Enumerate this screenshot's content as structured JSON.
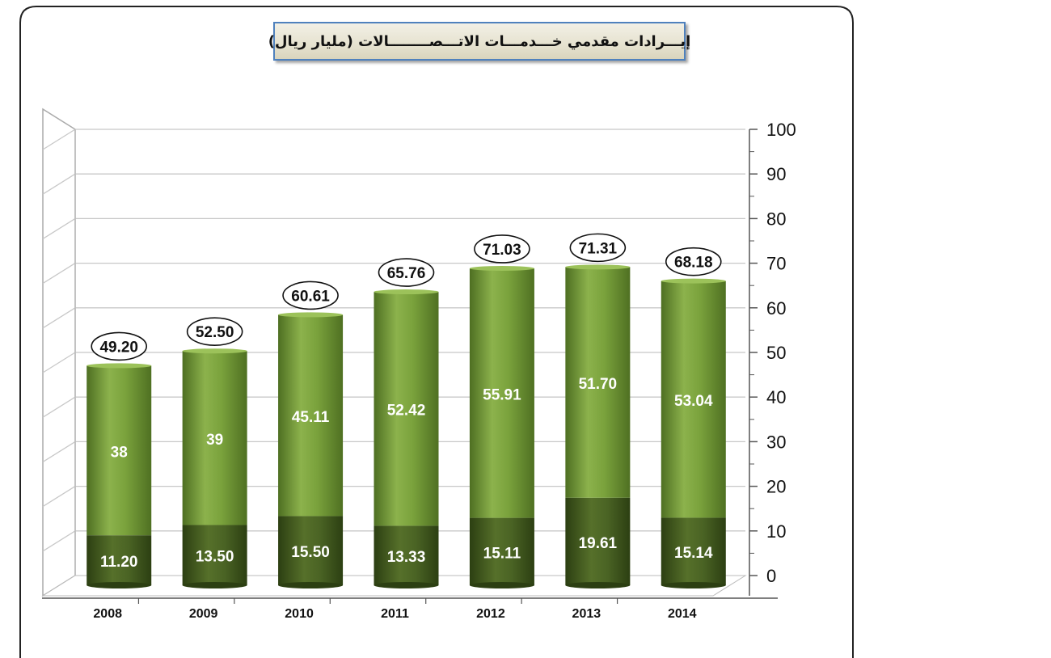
{
  "chart_data": {
    "type": "bar",
    "title": "إيـــرادات مقدمي خـــدمـــات الاتـــصــــــــالات (مليار ريال)",
    "categories": [
      "2008",
      "2009",
      "2010",
      "2011",
      "2012",
      "2013",
      "2014"
    ],
    "series": [
      {
        "values": [
          11.2,
          13.5,
          15.5,
          13.33,
          15.11,
          19.61,
          15.14
        ],
        "labels": [
          "11.20",
          "13.50",
          "15.50",
          "13.33",
          "15.11",
          "19.61",
          "15.14"
        ]
      },
      {
        "values": [
          38,
          39,
          45.11,
          52.42,
          55.91,
          51.7,
          53.04
        ],
        "labels": [
          "38",
          "39",
          "45.11",
          "52.42",
          "55.91",
          "51.70",
          "53.04"
        ]
      }
    ],
    "totals": [
      49.2,
      52.5,
      60.61,
      65.76,
      71.03,
      71.31,
      68.18
    ],
    "total_labels": [
      "49.20",
      "52.50",
      "60.61",
      "65.76",
      "71.03",
      "71.31",
      "68.18"
    ],
    "y_ticks": [
      "0",
      "10",
      "20",
      "30",
      "40",
      "50",
      "60",
      "70",
      "80",
      "90",
      "100"
    ],
    "ylim": [
      0,
      100
    ],
    "stacked": true,
    "grid": true,
    "y_axis_side": "right",
    "colors": {
      "bottom": "#3f5a1e",
      "top": "#6f9a35",
      "grid": "#cccccc"
    }
  }
}
